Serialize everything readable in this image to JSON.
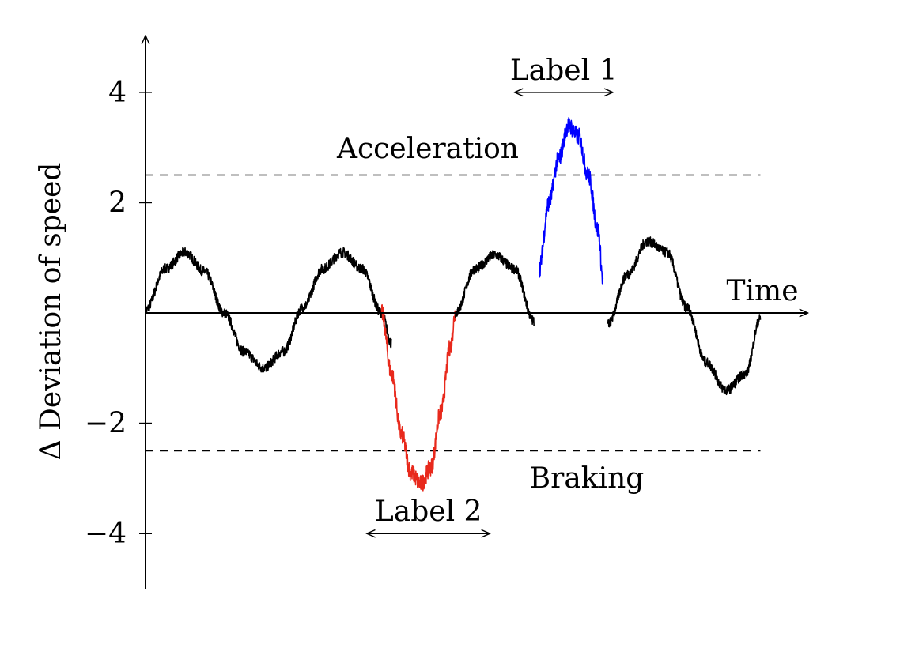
{
  "chart_data": {
    "type": "line",
    "title": "",
    "xlabel": "Time",
    "ylabel": "Δ Deviation of speed",
    "xlim": [
      0,
      12.5
    ],
    "ylim": [
      -5,
      5
    ],
    "yticks": [
      4,
      2,
      -2,
      -4
    ],
    "ytick_labels": [
      "4",
      "2",
      "−2",
      "−4"
    ],
    "grid": false,
    "thresholds": [
      {
        "label": "Acceleration",
        "y": 2.5
      },
      {
        "label": "Braking",
        "y": -2.5
      }
    ],
    "brackets": [
      {
        "label": "Label 1",
        "x_start": 7.5,
        "x_end": 9.5,
        "y": 4
      },
      {
        "label": "Label 2",
        "x_start": 4.5,
        "x_end": 7.0,
        "y": -4
      }
    ],
    "series": [
      {
        "color": "#000000",
        "segment": "normal-1",
        "x": [
          0,
          0.4,
          0.8,
          1.2,
          1.6,
          2.0,
          2.4,
          2.8,
          3.2,
          3.6,
          4.0,
          4.4,
          4.8,
          5.0
        ],
        "y": [
          0.05,
          0.8,
          1.1,
          0.75,
          0.0,
          -0.7,
          -1.0,
          -0.7,
          0.1,
          0.8,
          1.1,
          0.8,
          0.0,
          -0.55
        ]
      },
      {
        "color": "#e8291c",
        "segment": "braking",
        "x": [
          4.8,
          5.0,
          5.2,
          5.4,
          5.6,
          5.8,
          6.0,
          6.2,
          6.3
        ],
        "y": [
          0.0,
          -1.1,
          -2.2,
          -2.9,
          -3.1,
          -2.8,
          -1.8,
          -0.6,
          0.0
        ]
      },
      {
        "color": "#000000",
        "segment": "normal-2",
        "x": [
          6.3,
          6.7,
          7.1,
          7.5,
          7.9
        ],
        "y": [
          0.0,
          0.8,
          1.05,
          0.8,
          -0.15
        ]
      },
      {
        "color": "#0000ff",
        "segment": "acceleration",
        "x": [
          8.0,
          8.2,
          8.4,
          8.6,
          8.8,
          9.0,
          9.2,
          9.3
        ],
        "y": [
          0.8,
          2.0,
          2.8,
          3.4,
          3.2,
          2.5,
          1.5,
          0.6
        ]
      },
      {
        "color": "#000000",
        "segment": "normal-3",
        "x": [
          9.4,
          9.8,
          10.2,
          10.6,
          11.0,
          11.4,
          11.8,
          12.2,
          12.5
        ],
        "y": [
          -0.2,
          0.7,
          1.3,
          1.1,
          0.1,
          -0.9,
          -1.4,
          -1.1,
          -0.1
        ]
      }
    ]
  }
}
